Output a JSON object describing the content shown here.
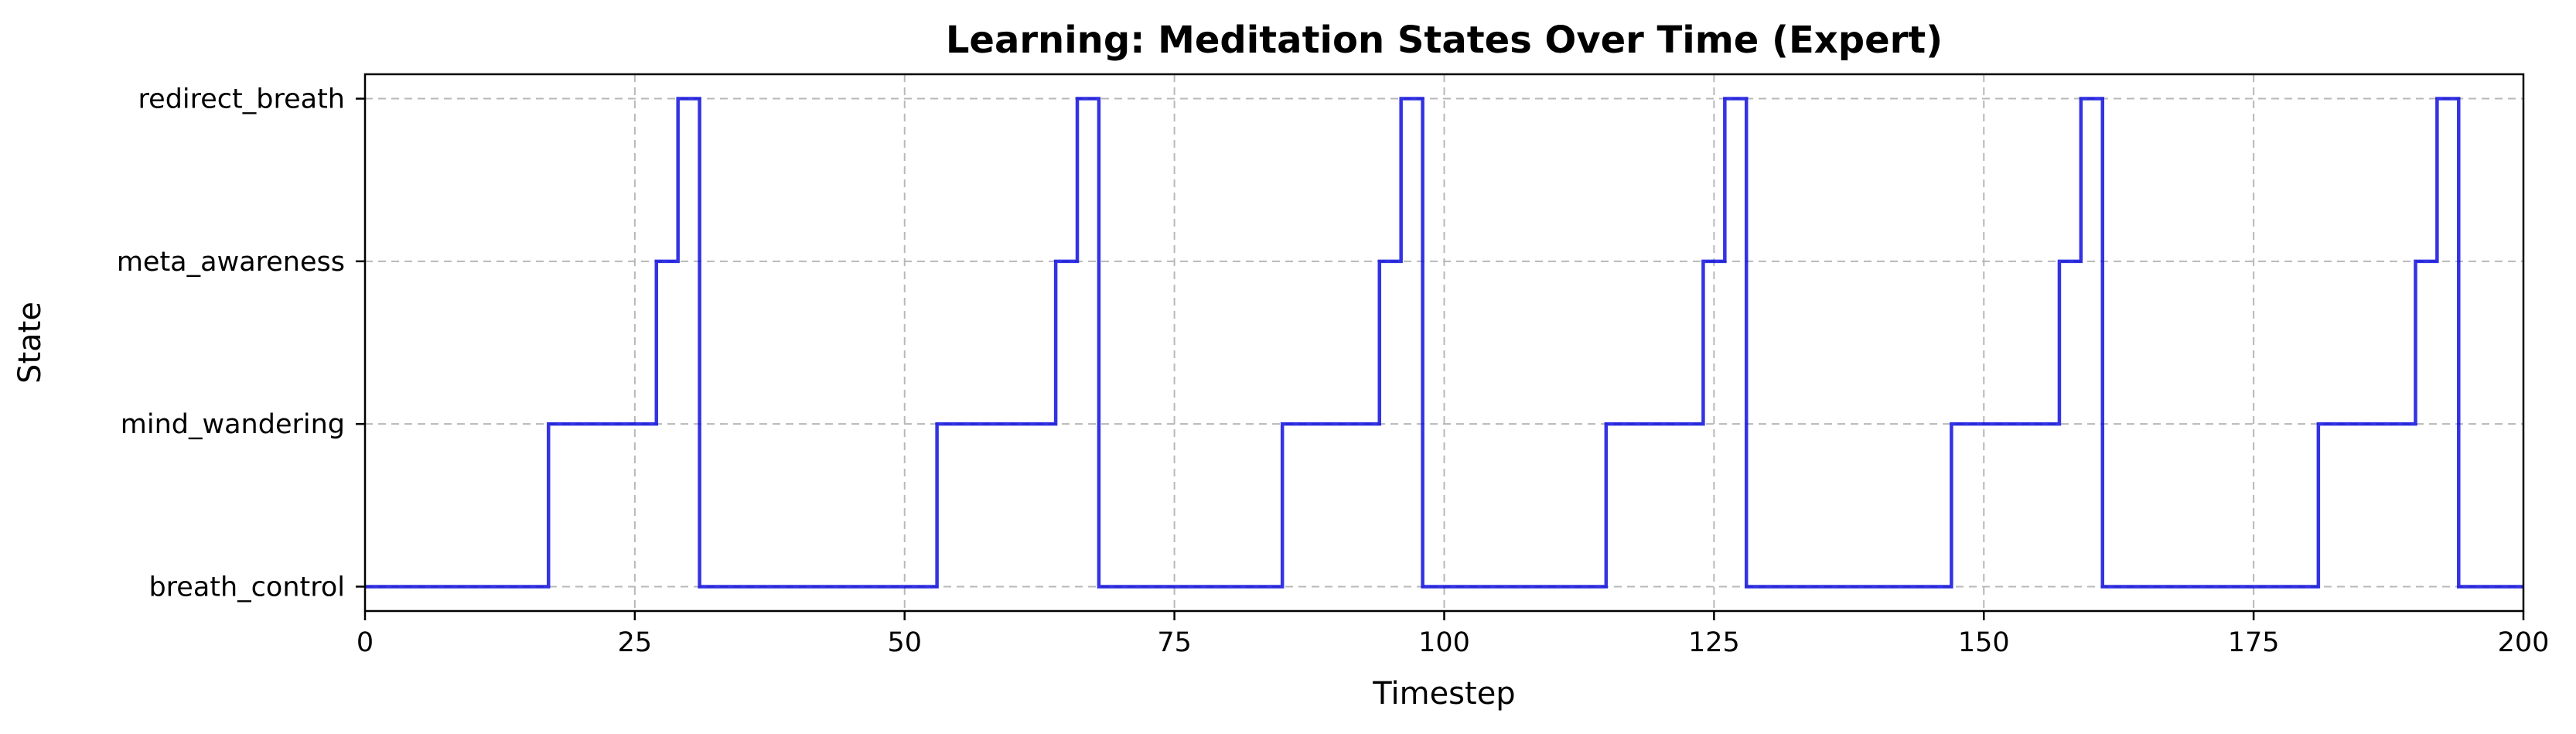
{
  "chart_data": {
    "type": "line",
    "step": true,
    "title": "Learning: Meditation States Over Time (Expert)",
    "xlabel": "Timestep",
    "ylabel": "State",
    "xlim": [
      0,
      200
    ],
    "x_ticks": [
      0,
      25,
      50,
      75,
      100,
      125,
      150,
      175,
      200
    ],
    "y_categories": [
      "breath_control",
      "mind_wandering",
      "meta_awareness",
      "redirect_breath"
    ],
    "grid": true,
    "series": [
      {
        "color": "#0000dd",
        "points": [
          [
            0,
            0
          ],
          [
            17,
            1
          ],
          [
            27,
            2
          ],
          [
            29,
            3
          ],
          [
            31,
            0
          ],
          [
            53,
            1
          ],
          [
            64,
            2
          ],
          [
            66,
            3
          ],
          [
            68,
            0
          ],
          [
            85,
            1
          ],
          [
            94,
            2
          ],
          [
            96,
            3
          ],
          [
            98,
            0
          ],
          [
            115,
            1
          ],
          [
            124,
            2
          ],
          [
            126,
            3
          ],
          [
            128,
            0
          ],
          [
            147,
            1
          ],
          [
            157,
            2
          ],
          [
            159,
            3
          ],
          [
            161,
            0
          ],
          [
            181,
            1
          ],
          [
            190,
            2
          ],
          [
            192,
            3
          ],
          [
            194,
            0
          ],
          [
            200,
            0
          ]
        ]
      }
    ]
  }
}
